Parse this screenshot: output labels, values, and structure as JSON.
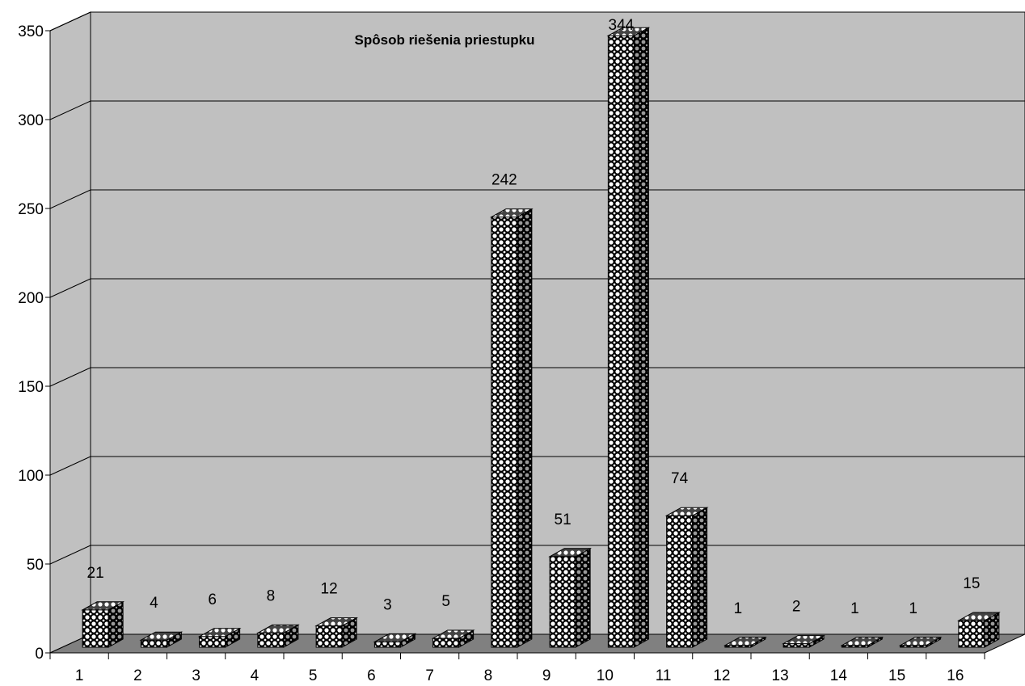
{
  "chart_data": {
    "type": "bar",
    "title": "Spôsob riešenia priestupku",
    "xlabel": "",
    "ylabel": "",
    "categories": [
      "1",
      "2",
      "3",
      "4",
      "5",
      "6",
      "7",
      "8",
      "9",
      "10",
      "11",
      "12",
      "13",
      "14",
      "15",
      "16"
    ],
    "values": [
      21,
      4,
      6,
      8,
      12,
      3,
      5,
      242,
      51,
      344,
      74,
      1,
      2,
      1,
      1,
      15
    ],
    "ylim": [
      0,
      350
    ],
    "yticks": [
      "0",
      "50",
      "100",
      "150",
      "200",
      "250",
      "300",
      "350"
    ],
    "grid": true,
    "three_d": true,
    "bar_pattern": "checkered",
    "colors": {
      "wall": "#c0c0c0",
      "floor": "#808080",
      "bar_pattern_dark": "#000000",
      "bar_pattern_light": "#ffffff"
    }
  }
}
